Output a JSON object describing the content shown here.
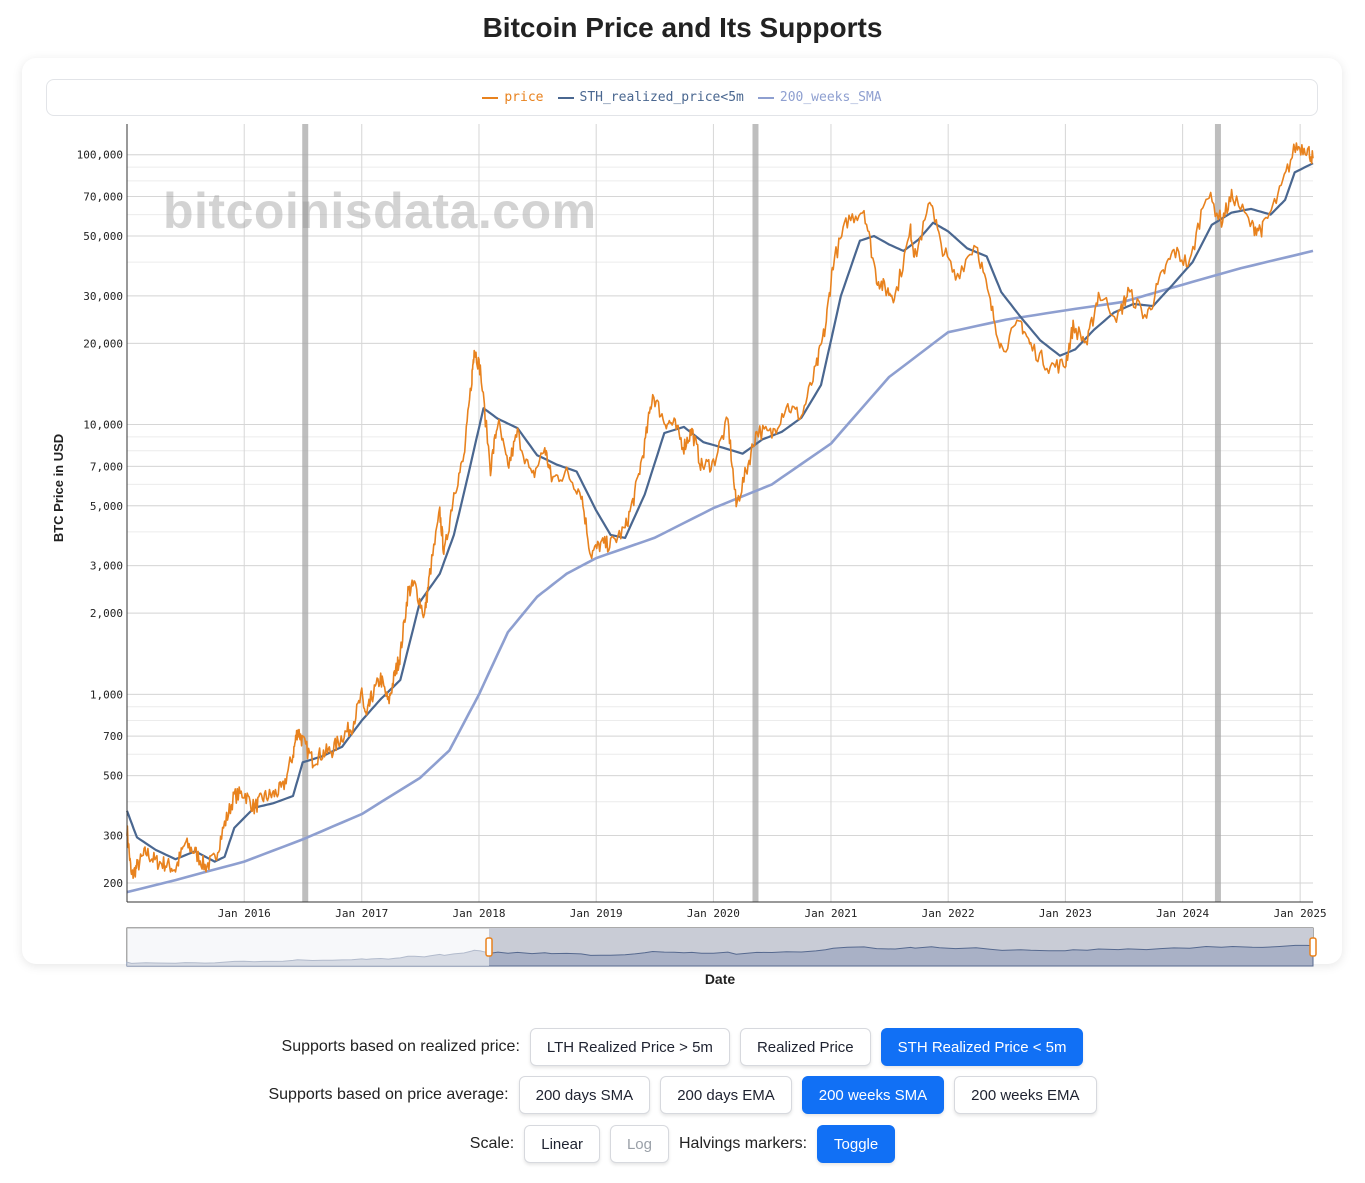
{
  "page": {
    "title": "Bitcoin Price and Its Supports",
    "watermark": "bitcoinisdata.com"
  },
  "chart_data": {
    "type": "line",
    "title": "Bitcoin Price and Its Supports",
    "xlabel": "Date",
    "ylabel": "BTC Price in USD",
    "yscale": "log",
    "ylim": [
      170,
      130000
    ],
    "xlim": [
      "2015-01-01",
      "2025-02-10"
    ],
    "x_ticks": [
      "Jan 2016",
      "Jan 2017",
      "Jan 2018",
      "Jan 2019",
      "Jan 2020",
      "Jan 2021",
      "Jan 2022",
      "Jan 2023",
      "Jan 2024",
      "Jan 2025"
    ],
    "y_ticks": [
      {
        "value": 200,
        "label": "200"
      },
      {
        "value": 300,
        "label": "300"
      },
      {
        "value": 500,
        "label": "500"
      },
      {
        "value": 700,
        "label": "700"
      },
      {
        "value": 1000,
        "label": "1,000"
      },
      {
        "value": 2000,
        "label": "2,000"
      },
      {
        "value": 3000,
        "label": "3,000"
      },
      {
        "value": 5000,
        "label": "5,000"
      },
      {
        "value": 7000,
        "label": "7,000"
      },
      {
        "value": 10000,
        "label": "10,000"
      },
      {
        "value": 20000,
        "label": "20,000"
      },
      {
        "value": 30000,
        "label": "30,000"
      },
      {
        "value": 50000,
        "label": "50,000"
      },
      {
        "value": 70000,
        "label": "70,000"
      },
      {
        "value": 100000,
        "label": "100,000"
      }
    ],
    "grid": true,
    "legend_position": "top-center",
    "halvings": [
      "2016-07-09",
      "2020-05-11",
      "2024-04-20"
    ],
    "series": [
      {
        "name": "price",
        "color": "#e8821e",
        "points": [
          [
            "2015-01-01",
            320
          ],
          [
            "2015-01-15",
            210
          ],
          [
            "2015-02-01",
            230
          ],
          [
            "2015-03-01",
            260
          ],
          [
            "2015-04-01",
            240
          ],
          [
            "2015-05-01",
            235
          ],
          [
            "2015-06-01",
            225
          ],
          [
            "2015-07-01",
            280
          ],
          [
            "2015-08-01",
            260
          ],
          [
            "2015-09-01",
            230
          ],
          [
            "2015-10-01",
            245
          ],
          [
            "2015-11-01",
            330
          ],
          [
            "2015-12-01",
            420
          ],
          [
            "2016-01-01",
            430
          ],
          [
            "2016-02-01",
            380
          ],
          [
            "2016-03-01",
            415
          ],
          [
            "2016-04-01",
            425
          ],
          [
            "2016-05-01",
            450
          ],
          [
            "2016-06-01",
            600
          ],
          [
            "2016-06-15",
            740
          ],
          [
            "2016-07-01",
            670
          ],
          [
            "2016-08-01",
            570
          ],
          [
            "2016-09-01",
            605
          ],
          [
            "2016-10-01",
            620
          ],
          [
            "2016-11-01",
            700
          ],
          [
            "2016-12-01",
            760
          ],
          [
            "2017-01-01",
            990
          ],
          [
            "2017-01-15",
            820
          ],
          [
            "2017-02-01",
            980
          ],
          [
            "2017-03-01",
            1150
          ],
          [
            "2017-03-25",
            930
          ],
          [
            "2017-04-15",
            1200
          ],
          [
            "2017-05-01",
            1400
          ],
          [
            "2017-05-25",
            2400
          ],
          [
            "2017-06-15",
            2550
          ],
          [
            "2017-07-15",
            1950
          ],
          [
            "2017-08-01",
            2800
          ],
          [
            "2017-09-01",
            4700
          ],
          [
            "2017-09-15",
            3300
          ],
          [
            "2017-10-15",
            5600
          ],
          [
            "2017-11-15",
            7500
          ],
          [
            "2017-12-10",
            15000
          ],
          [
            "2017-12-17",
            19200
          ],
          [
            "2018-01-05",
            16000
          ],
          [
            "2018-02-06",
            6900
          ],
          [
            "2018-03-01",
            10300
          ],
          [
            "2018-04-01",
            6900
          ],
          [
            "2018-05-01",
            9300
          ],
          [
            "2018-06-15",
            6300
          ],
          [
            "2018-07-25",
            8200
          ],
          [
            "2018-08-15",
            6300
          ],
          [
            "2018-10-01",
            6600
          ],
          [
            "2018-11-15",
            5600
          ],
          [
            "2018-12-15",
            3300
          ],
          [
            "2019-01-15",
            3600
          ],
          [
            "2019-02-15",
            3600
          ],
          [
            "2019-04-01",
            4100
          ],
          [
            "2019-05-01",
            5500
          ],
          [
            "2019-06-01",
            8400
          ],
          [
            "2019-06-26",
            13000
          ],
          [
            "2019-08-01",
            10300
          ],
          [
            "2019-09-01",
            10000
          ],
          [
            "2019-10-01",
            8300
          ],
          [
            "2019-10-26",
            9500
          ],
          [
            "2019-11-25",
            7000
          ],
          [
            "2020-01-01",
            7200
          ],
          [
            "2020-02-15",
            10300
          ],
          [
            "2020-03-12",
            5000
          ],
          [
            "2020-04-15",
            6900
          ],
          [
            "2020-05-15",
            9500
          ],
          [
            "2020-07-01",
            9200
          ],
          [
            "2020-08-15",
            11800
          ],
          [
            "2020-10-01",
            10700
          ],
          [
            "2020-11-15",
            16000
          ],
          [
            "2020-12-15",
            23000
          ],
          [
            "2021-01-08",
            40000
          ],
          [
            "2021-02-21",
            57000
          ],
          [
            "2021-04-14",
            63000
          ],
          [
            "2021-05-23",
            35000
          ],
          [
            "2021-06-22",
            31500
          ],
          [
            "2021-07-20",
            30000
          ],
          [
            "2021-09-06",
            52000
          ],
          [
            "2021-09-20",
            42000
          ],
          [
            "2021-11-10",
            68000
          ],
          [
            "2021-12-05",
            48000
          ],
          [
            "2022-01-24",
            35000
          ],
          [
            "2022-03-29",
            47500
          ],
          [
            "2022-05-12",
            28000
          ],
          [
            "2022-06-18",
            19000
          ],
          [
            "2022-08-15",
            24000
          ],
          [
            "2022-09-15",
            19500
          ],
          [
            "2022-11-10",
            16500
          ],
          [
            "2022-12-31",
            16600
          ],
          [
            "2023-01-25",
            23000
          ],
          [
            "2023-03-10",
            20000
          ],
          [
            "2023-04-14",
            30500
          ],
          [
            "2023-06-15",
            25000
          ],
          [
            "2023-07-15",
            31000
          ],
          [
            "2023-09-11",
            25000
          ],
          [
            "2023-10-24",
            34500
          ],
          [
            "2023-12-05",
            44000
          ],
          [
            "2024-01-23",
            39000
          ],
          [
            "2024-03-14",
            73000
          ],
          [
            "2024-05-01",
            57000
          ],
          [
            "2024-06-05",
            71000
          ],
          [
            "2024-08-05",
            54000
          ],
          [
            "2024-09-06",
            53000
          ],
          [
            "2024-10-29",
            72000
          ],
          [
            "2024-12-17",
            107000
          ],
          [
            "2025-01-20",
            106000
          ],
          [
            "2025-02-10",
            97000
          ]
        ]
      },
      {
        "name": "STH_realized_price<5m",
        "color": "#4a6790",
        "points": [
          [
            "2015-01-01",
            370
          ],
          [
            "2015-02-01",
            295
          ],
          [
            "2015-04-01",
            265
          ],
          [
            "2015-06-01",
            245
          ],
          [
            "2015-08-01",
            262
          ],
          [
            "2015-10-01",
            240
          ],
          [
            "2015-11-01",
            250
          ],
          [
            "2015-12-01",
            320
          ],
          [
            "2016-02-01",
            380
          ],
          [
            "2016-04-01",
            395
          ],
          [
            "2016-06-01",
            420
          ],
          [
            "2016-07-01",
            560
          ],
          [
            "2016-09-01",
            590
          ],
          [
            "2016-11-01",
            640
          ],
          [
            "2017-01-01",
            800
          ],
          [
            "2017-03-01",
            960
          ],
          [
            "2017-05-01",
            1130
          ],
          [
            "2017-07-01",
            2200
          ],
          [
            "2017-09-01",
            2800
          ],
          [
            "2017-10-15",
            3900
          ],
          [
            "2017-12-01",
            6700
          ],
          [
            "2018-01-15",
            11500
          ],
          [
            "2018-03-01",
            10500
          ],
          [
            "2018-05-01",
            9700
          ],
          [
            "2018-07-01",
            7700
          ],
          [
            "2018-09-01",
            7100
          ],
          [
            "2018-11-01",
            6700
          ],
          [
            "2019-01-01",
            4800
          ],
          [
            "2019-02-15",
            3900
          ],
          [
            "2019-04-01",
            3800
          ],
          [
            "2019-06-01",
            5500
          ],
          [
            "2019-08-01",
            9300
          ],
          [
            "2019-10-01",
            9800
          ],
          [
            "2019-12-01",
            8600
          ],
          [
            "2020-02-01",
            8200
          ],
          [
            "2020-04-01",
            7800
          ],
          [
            "2020-06-01",
            8800
          ],
          [
            "2020-08-01",
            9400
          ],
          [
            "2020-10-01",
            10600
          ],
          [
            "2020-12-01",
            14000
          ],
          [
            "2021-02-01",
            30000
          ],
          [
            "2021-04-01",
            48000
          ],
          [
            "2021-05-15",
            50000
          ],
          [
            "2021-07-01",
            46500
          ],
          [
            "2021-08-15",
            44000
          ],
          [
            "2021-10-01",
            48500
          ],
          [
            "2021-11-15",
            56000
          ],
          [
            "2022-01-01",
            52000
          ],
          [
            "2022-03-01",
            45000
          ],
          [
            "2022-05-01",
            42000
          ],
          [
            "2022-06-15",
            31000
          ],
          [
            "2022-08-15",
            25000
          ],
          [
            "2022-10-15",
            20500
          ],
          [
            "2022-12-15",
            18000
          ],
          [
            "2023-02-01",
            19000
          ],
          [
            "2023-04-01",
            22500
          ],
          [
            "2023-06-01",
            26000
          ],
          [
            "2023-08-01",
            28000
          ],
          [
            "2023-10-01",
            27500
          ],
          [
            "2023-12-01",
            33000
          ],
          [
            "2024-02-01",
            40000
          ],
          [
            "2024-04-01",
            55000
          ],
          [
            "2024-06-01",
            61000
          ],
          [
            "2024-08-01",
            63000
          ],
          [
            "2024-10-01",
            60000
          ],
          [
            "2024-11-15",
            68000
          ],
          [
            "2024-12-15",
            86000
          ],
          [
            "2025-02-10",
            93000
          ]
        ]
      },
      {
        "name": "200_weeks_SMA",
        "color": "#8e9fd0",
        "points": [
          [
            "2015-01-01",
            185
          ],
          [
            "2015-06-01",
            205
          ],
          [
            "2016-01-01",
            240
          ],
          [
            "2016-07-01",
            290
          ],
          [
            "2017-01-01",
            360
          ],
          [
            "2017-07-01",
            490
          ],
          [
            "2017-10-01",
            620
          ],
          [
            "2018-01-01",
            1000
          ],
          [
            "2018-04-01",
            1700
          ],
          [
            "2018-07-01",
            2300
          ],
          [
            "2018-10-01",
            2800
          ],
          [
            "2019-01-01",
            3200
          ],
          [
            "2019-07-01",
            3800
          ],
          [
            "2020-01-01",
            4900
          ],
          [
            "2020-07-01",
            6000
          ],
          [
            "2021-01-01",
            8500
          ],
          [
            "2021-07-01",
            15000
          ],
          [
            "2022-01-01",
            22000
          ],
          [
            "2022-07-01",
            24500
          ],
          [
            "2023-01-01",
            26500
          ],
          [
            "2023-07-01",
            28500
          ],
          [
            "2024-01-01",
            33000
          ],
          [
            "2024-07-01",
            38000
          ],
          [
            "2025-02-10",
            44000
          ]
        ]
      }
    ],
    "range_selector": {
      "label": "Date"
    }
  },
  "controls": {
    "realized": {
      "label": "Supports based on realized price:",
      "buttons": [
        "LTH Realized Price > 5m",
        "Realized Price",
        "STH Realized Price < 5m"
      ]
    },
    "average": {
      "label": "Supports based on price average:",
      "buttons": [
        "200 days SMA",
        "200 days EMA",
        "200 weeks SMA",
        "200 weeks EMA"
      ]
    },
    "scale": {
      "label": "Scale:",
      "linear": "Linear",
      "log": "Log"
    },
    "halvings": {
      "label": "Halvings markers:",
      "toggle": "Toggle"
    }
  }
}
